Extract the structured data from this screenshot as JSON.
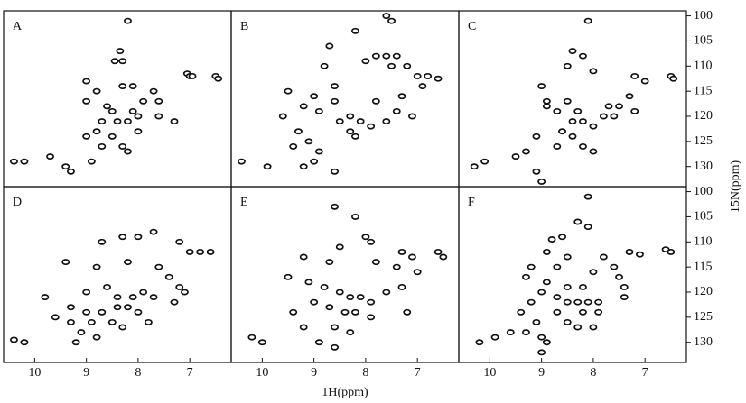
{
  "chart_data": [
    {
      "type": "scatter",
      "label": "A",
      "xlim": [
        10.6,
        6.2
      ],
      "ylim": [
        99,
        134
      ],
      "x": [
        8.2,
        8.35,
        8.3,
        8.45,
        7.05,
        7.0,
        6.95,
        6.5,
        6.45,
        9.0,
        8.8,
        8.3,
        8.1,
        9.0,
        8.6,
        8.5,
        8.7,
        8.4,
        8.2,
        8.0,
        8.1,
        7.6,
        7.3,
        8.8,
        8.5,
        8.7,
        8.3,
        8.2,
        8.0,
        10.4,
        10.2,
        9.7,
        9.4,
        9.3,
        8.9,
        9.0,
        7.9,
        7.6,
        7.7
      ],
      "y": [
        101,
        107,
        109,
        109,
        111.5,
        112,
        112,
        112,
        112.5,
        113,
        115,
        114,
        114,
        117,
        118,
        119,
        121,
        121,
        121,
        120,
        119,
        120,
        121,
        123,
        124,
        126,
        126,
        127,
        123,
        129,
        129,
        128,
        130,
        131,
        129,
        124,
        117,
        117,
        115
      ]
    },
    {
      "type": "scatter",
      "label": "B",
      "xlim": [
        10.6,
        6.2
      ],
      "ylim": [
        99,
        134
      ],
      "x": [
        7.6,
        7.5,
        8.2,
        8.7,
        7.4,
        7.6,
        7.8,
        8.0,
        8.8,
        7.5,
        7.2,
        7.0,
        6.8,
        6.6,
        6.9,
        9.5,
        9.0,
        8.6,
        9.2,
        8.9,
        9.6,
        8.3,
        8.5,
        8.1,
        8.3,
        8.2,
        7.9,
        7.6,
        7.4,
        7.1,
        9.3,
        9.1,
        9.4,
        8.9,
        9.0,
        9.2,
        8.6,
        9.9,
        10.4,
        7.8,
        8.6,
        7.3
      ],
      "y": [
        100,
        101,
        103,
        106,
        108,
        108,
        108,
        109,
        110,
        110,
        110,
        112,
        112,
        112.5,
        114,
        115,
        116,
        117,
        118,
        119,
        120,
        120,
        121,
        121,
        123,
        124,
        122,
        121,
        119,
        120,
        123,
        125,
        126,
        127,
        129,
        130,
        131,
        130,
        129,
        117,
        114,
        116
      ]
    },
    {
      "type": "scatter",
      "label": "C",
      "xlim": [
        10.6,
        6.2
      ],
      "ylim": [
        99,
        134
      ],
      "ylabel": "15N(ppm)",
      "yticks": [
        100,
        105,
        110,
        115,
        120,
        125,
        130
      ],
      "x": [
        8.1,
        8.4,
        8.2,
        8.5,
        8.0,
        7.2,
        7.0,
        6.5,
        6.45,
        9.0,
        8.9,
        8.5,
        8.7,
        8.3,
        8.4,
        8.2,
        8.0,
        7.8,
        7.6,
        7.5,
        7.3,
        7.2,
        8.6,
        8.4,
        8.2,
        8.0,
        8.7,
        9.1,
        9.3,
        9.5,
        10.3,
        10.1,
        9.1,
        9.0,
        8.9,
        7.7
      ],
      "y": [
        101,
        107,
        108,
        110,
        111,
        112,
        113,
        112,
        112.5,
        114,
        117,
        117,
        119,
        119,
        121,
        121,
        122,
        120,
        120,
        118,
        116,
        119,
        123,
        124,
        126,
        127,
        126,
        124,
        127,
        128,
        130,
        129,
        131,
        133,
        118,
        118
      ]
    },
    {
      "type": "scatter",
      "label": "D",
      "xlim": [
        10.6,
        6.2
      ],
      "ylim": [
        99,
        134
      ],
      "xticks": [
        10,
        9,
        8,
        7
      ],
      "x": [
        8.3,
        8.0,
        7.7,
        8.7,
        7.2,
        7.0,
        6.8,
        6.6,
        9.4,
        8.8,
        8.2,
        7.6,
        7.4,
        9.8,
        9.0,
        8.6,
        8.4,
        8.1,
        7.9,
        7.7,
        7.2,
        7.1,
        9.3,
        9.0,
        8.7,
        8.4,
        8.2,
        8.0,
        9.6,
        9.3,
        8.9,
        8.5,
        8.3,
        7.8,
        9.1,
        8.8,
        9.2,
        10.2,
        10.4,
        7.3
      ],
      "y": [
        109,
        109,
        108,
        110,
        110,
        112,
        112,
        112,
        114,
        115,
        114,
        115,
        117,
        121,
        120,
        119,
        121,
        121,
        120,
        121,
        119,
        120,
        123,
        124,
        124,
        123,
        123,
        124,
        125,
        126,
        126,
        126,
        127,
        126,
        128,
        129,
        130,
        130,
        129.5,
        122
      ]
    },
    {
      "type": "scatter",
      "label": "E",
      "xlim": [
        10.6,
        6.2
      ],
      "ylim": [
        99,
        134
      ],
      "xlabel": "1H(ppm)",
      "xticks": [
        10,
        9,
        8,
        7
      ],
      "x": [
        8.6,
        8.2,
        8.0,
        7.9,
        8.5,
        7.3,
        7.1,
        6.6,
        6.5,
        9.2,
        8.7,
        7.8,
        7.4,
        9.5,
        9.1,
        8.8,
        8.5,
        8.3,
        8.1,
        7.9,
        7.6,
        7.3,
        9.0,
        8.7,
        8.4,
        8.2,
        7.9,
        9.4,
        9.2,
        8.6,
        8.3,
        8.9,
        8.6,
        10.2,
        10.0,
        7.2,
        7.0
      ],
      "y": [
        103,
        105,
        109,
        110,
        111,
        112,
        113,
        112,
        113,
        113,
        114,
        114,
        115,
        117,
        118,
        119,
        120,
        121,
        121,
        122,
        120,
        119,
        122,
        123,
        124,
        124,
        125,
        124,
        127,
        127,
        128,
        130,
        131,
        129,
        130,
        124,
        116
      ]
    },
    {
      "type": "scatter",
      "label": "F",
      "xlim": [
        10.6,
        6.2
      ],
      "ylim": [
        99,
        134
      ],
      "xticks": [
        10,
        9,
        8,
        7
      ],
      "yticks": [
        100,
        105,
        110,
        115,
        120,
        125,
        130
      ],
      "x": [
        8.1,
        8.3,
        8.1,
        8.6,
        8.8,
        7.3,
        7.1,
        6.6,
        6.5,
        8.9,
        8.5,
        7.8,
        9.2,
        8.7,
        7.6,
        8.0,
        7.5,
        9.3,
        8.9,
        8.5,
        8.2,
        7.4,
        9.0,
        8.7,
        8.5,
        8.3,
        8.1,
        7.9,
        7.4,
        9.2,
        8.7,
        8.2,
        7.9,
        9.4,
        9.1,
        8.5,
        8.3,
        8.0,
        9.3,
        9.6,
        9.0,
        8.9,
        9.0,
        10.2,
        9.9
      ],
      "y": [
        101,
        106,
        107,
        109,
        109.5,
        112,
        112.5,
        111.5,
        112,
        112,
        113,
        113,
        115,
        115,
        115,
        116,
        117,
        117,
        118,
        119,
        119,
        119,
        120,
        121,
        122,
        122,
        122,
        122,
        121,
        122,
        124,
        124,
        124,
        124,
        126,
        126,
        127,
        127,
        128,
        128,
        129,
        130,
        132,
        130,
        129
      ]
    }
  ]
}
